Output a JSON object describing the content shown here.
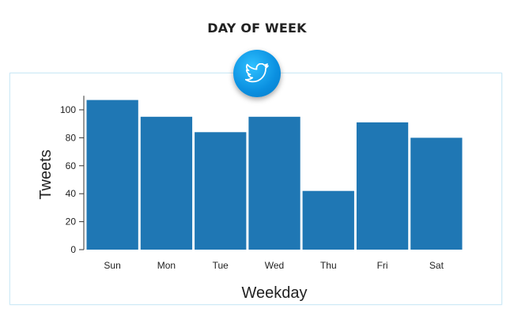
{
  "header": {
    "title": "DAY OF WEEK"
  },
  "badge": {
    "icon": "twitter-bird-icon",
    "color": "#0a8fe0"
  },
  "chart_data": {
    "type": "bar",
    "categories": [
      "Sun",
      "Mon",
      "Tue",
      "Wed",
      "Thu",
      "Fri",
      "Sat"
    ],
    "values": [
      107,
      95,
      84,
      95,
      42,
      91,
      80
    ],
    "title": "",
    "xlabel": "Weekday",
    "ylabel": "Tweets",
    "ylim": [
      0,
      110
    ],
    "yticks": [
      0,
      20,
      40,
      60,
      80,
      100
    ],
    "ytick_labels": [
      "0",
      "20",
      "40",
      "60",
      "80",
      "100"
    ],
    "bar_color": "#1f77b4",
    "grid": false,
    "legend": "none"
  }
}
